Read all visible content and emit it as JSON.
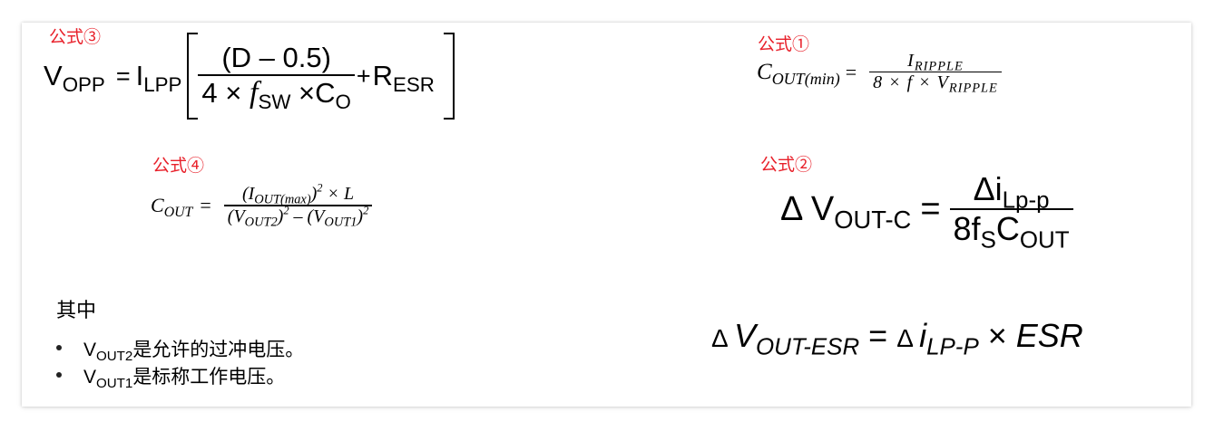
{
  "labels": {
    "formula3": "公式③",
    "formula1": "公式①",
    "formula4": "公式④",
    "formula2": "公式②"
  },
  "formula3": {
    "lhs": "V",
    "lhs_sub": "OPP",
    "eq": "=",
    "factor": "I",
    "factor_sub": "LPP",
    "numerator": "(D – 0.5)",
    "den_a": "4 × ",
    "den_f": "f",
    "den_f_sub": "SW",
    "den_b": " ×C",
    "den_b_sub": "O",
    "plus": "+",
    "term": "R",
    "term_sub": "ESR"
  },
  "formula1": {
    "lhs": "C",
    "lhs_sub": "OUT(min)",
    "eq": "=",
    "numerator": "I",
    "numerator_sub": "RIPPLE",
    "den_a": "8 × f × V",
    "den_sub": "RIPPLE"
  },
  "formula4": {
    "lhs": "C",
    "lhs_sub": "OUT",
    "eq": "=",
    "num_open": "(I",
    "num_sub": "OUT(max)",
    "num_close": ")",
    "num_sup": "2",
    "num_tail": " × L",
    "den_a": "(V",
    "den_a_sub": "OUT2",
    "den_a_close": ")",
    "den_a_sup": "2",
    "den_minus": " – ",
    "den_b": "(V",
    "den_b_sub": "OUT1",
    "den_b_close": ")",
    "den_b_sup": "2"
  },
  "formula2": {
    "lhs": "Δ V",
    "lhs_sub": "OUT-C",
    "eq": "=",
    "numerator": "Δi",
    "numerator_sub": "Lp-p",
    "den_a": "8f",
    "den_a_sub": "S",
    "den_b": "C",
    "den_b_sub": "OUT"
  },
  "formula5": {
    "delta1": "Δ ",
    "lhs": "V",
    "lhs_sub": "OUT-ESR",
    "eq": " = ",
    "delta2": "Δ ",
    "rhs": "i",
    "rhs_sub": "LP-P",
    "times": " × ",
    "esr": "ESR"
  },
  "notes": {
    "title": "其中",
    "items": [
      {
        "var": "V",
        "var_sub": "OUT2",
        "text": " 是允许的过冲电压。"
      },
      {
        "var": "V",
        "var_sub": "OUT1",
        "text": " 是标称工作电压。"
      }
    ]
  },
  "colors": {
    "label": "#e8202a",
    "text": "#000000"
  }
}
